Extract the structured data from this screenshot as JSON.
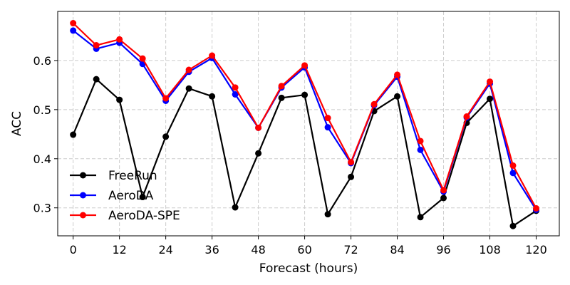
{
  "chart_data": {
    "type": "line",
    "xlabel": "Forecast (hours)",
    "ylabel": "ACC",
    "xlim": [
      -4,
      126
    ],
    "ylim": [
      0.243,
      0.7
    ],
    "xticks": [
      0,
      12,
      24,
      36,
      48,
      60,
      72,
      84,
      96,
      108,
      120
    ],
    "yticks": [
      0.3,
      0.4,
      0.5,
      0.6
    ],
    "grid": true,
    "legend_position": "lower-left",
    "x": [
      0,
      6,
      12,
      18,
      24,
      30,
      36,
      42,
      48,
      54,
      60,
      66,
      72,
      78,
      84,
      90,
      96,
      102,
      108,
      114,
      120
    ],
    "series": [
      {
        "name": "FreeRun",
        "color": "#000000",
        "values": [
          0.449,
          0.562,
          0.52,
          0.322,
          0.445,
          0.543,
          0.527,
          0.301,
          0.411,
          0.524,
          0.53,
          0.287,
          0.363,
          0.497,
          0.527,
          0.281,
          0.32,
          0.473,
          0.522,
          0.263,
          0.294
        ]
      },
      {
        "name": "AeroDA",
        "color": "#0000ff",
        "values": [
          0.661,
          0.624,
          0.636,
          0.593,
          0.518,
          0.577,
          0.605,
          0.531,
          0.463,
          0.545,
          0.586,
          0.464,
          0.391,
          0.509,
          0.567,
          0.418,
          0.333,
          0.484,
          0.553,
          0.371,
          0.296
        ]
      },
      {
        "name": "AeroDA-SPE",
        "color": "#ff0000",
        "values": [
          0.676,
          0.631,
          0.643,
          0.604,
          0.523,
          0.581,
          0.61,
          0.545,
          0.463,
          0.548,
          0.59,
          0.483,
          0.393,
          0.511,
          0.571,
          0.436,
          0.336,
          0.486,
          0.557,
          0.386,
          0.299
        ]
      }
    ]
  }
}
